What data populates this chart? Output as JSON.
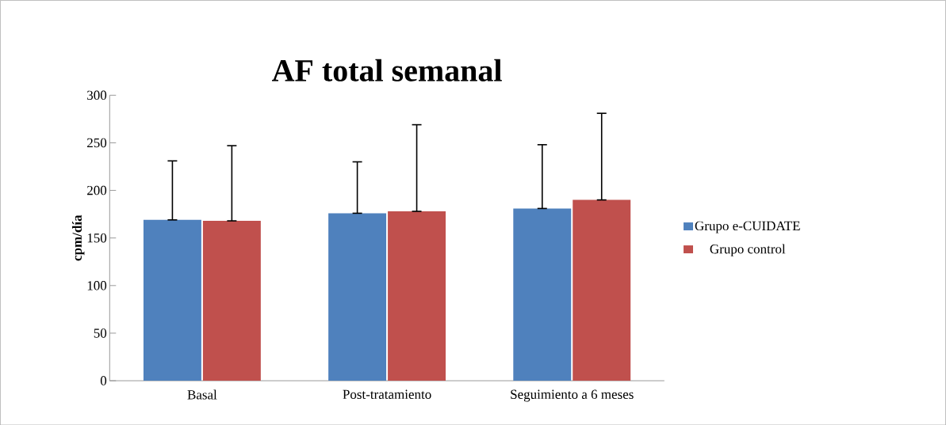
{
  "chart_data": {
    "type": "bar",
    "title": "AF total semanal",
    "ylabel": "cpm/día",
    "categories": [
      "Basal",
      "Post-tratamiento",
      "Seguimiento a 6 meses"
    ],
    "series": [
      {
        "name": "Grupo e-CUIDATE",
        "color": "#4f81bd",
        "values": [
          169,
          176,
          181
        ],
        "errors": [
          [
            169,
            231
          ],
          [
            176,
            230
          ],
          [
            181,
            248
          ]
        ]
      },
      {
        "name": "Grupo control",
        "color": "#c0504d",
        "values": [
          168,
          178,
          190
        ],
        "errors": [
          [
            168,
            247
          ],
          [
            178,
            269
          ],
          [
            190,
            281
          ]
        ]
      }
    ],
    "ylim": [
      0,
      300
    ],
    "yticks": [
      0,
      50,
      100,
      150,
      200,
      250,
      300
    ],
    "grid": false,
    "legend": "right"
  }
}
